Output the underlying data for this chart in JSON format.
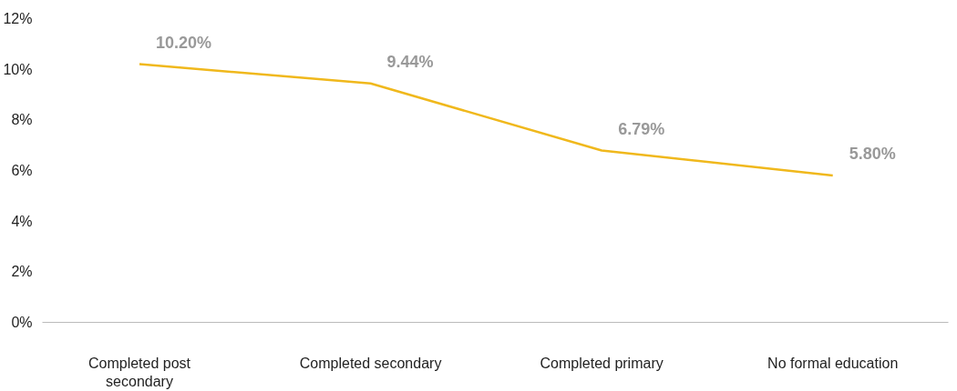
{
  "chart_data": {
    "type": "line",
    "categories": [
      "Completed post secondary",
      "Completed secondary",
      "Completed primary",
      "No formal education"
    ],
    "series": [
      {
        "color": "#f0b81c",
        "values": [
          10.2,
          9.44,
          6.79,
          5.8
        ]
      }
    ],
    "value_labels": [
      "10.20%",
      "9.44%",
      "6.79%",
      "5.80%"
    ],
    "ylim": [
      0,
      12
    ],
    "yticks": [
      {
        "value": 0,
        "label": "0%"
      },
      {
        "value": 2,
        "label": "2%"
      },
      {
        "value": 4,
        "label": "4%"
      },
      {
        "value": 6,
        "label": "6%"
      },
      {
        "value": 8,
        "label": "8%"
      },
      {
        "value": 10,
        "label": "10%"
      },
      {
        "value": 12,
        "label": "12%"
      }
    ],
    "grid": false,
    "marker": "none",
    "line_style": "solid"
  }
}
